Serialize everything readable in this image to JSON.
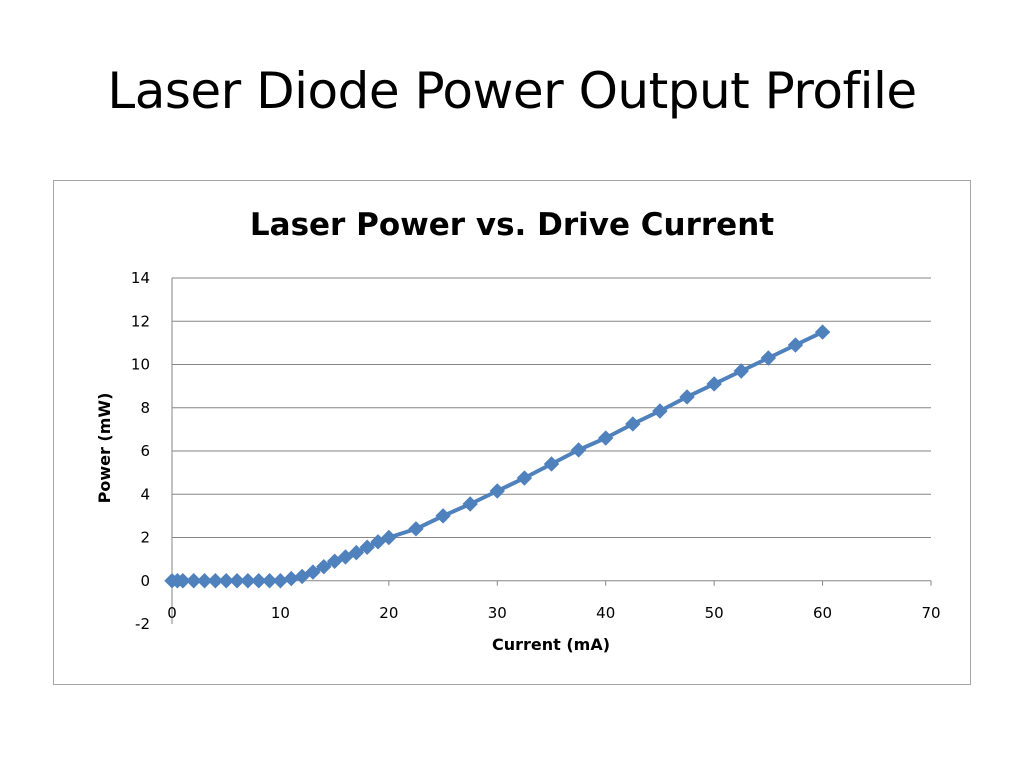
{
  "slide": {
    "title": "Laser Diode Power Output Profile"
  },
  "colors": {
    "series": "#4f81bd",
    "grid": "#868686",
    "frame": "#a6a6a6"
  },
  "chart_data": {
    "type": "line",
    "title": "Laser Power vs. Drive Current",
    "xlabel": "Current (mA)",
    "ylabel": "Power (mW)",
    "xlim": [
      0,
      70
    ],
    "ylim": [
      -2,
      14
    ],
    "x_ticks": [
      "0",
      "10",
      "20",
      "30",
      "40",
      "50",
      "60",
      "70"
    ],
    "y_ticks": [
      "-2",
      "0",
      "2",
      "4",
      "6",
      "8",
      "10",
      "12",
      "14"
    ],
    "grid": true,
    "legend": "none",
    "marker": "diamond",
    "series": [
      {
        "x": [
          0,
          0.5,
          1,
          2,
          3,
          4,
          5,
          6,
          7,
          8,
          9,
          10,
          11,
          12,
          13,
          14,
          15,
          16,
          17,
          18,
          19,
          20,
          22.5,
          25,
          27.5,
          30,
          32.5,
          35,
          37.5,
          40,
          42.5,
          45,
          47.5,
          50,
          52.5,
          55,
          57.5,
          60
        ],
        "y": [
          0,
          0,
          0,
          0,
          0,
          0,
          0,
          0,
          0,
          0,
          0,
          0,
          0.1,
          0.2,
          0.4,
          0.65,
          0.9,
          1.1,
          1.3,
          1.55,
          1.8,
          2.0,
          2.4,
          3.0,
          3.55,
          4.15,
          4.75,
          5.4,
          6.05,
          6.6,
          7.25,
          7.85,
          8.5,
          9.1,
          9.7,
          10.3,
          10.9,
          11.5
        ]
      }
    ]
  }
}
